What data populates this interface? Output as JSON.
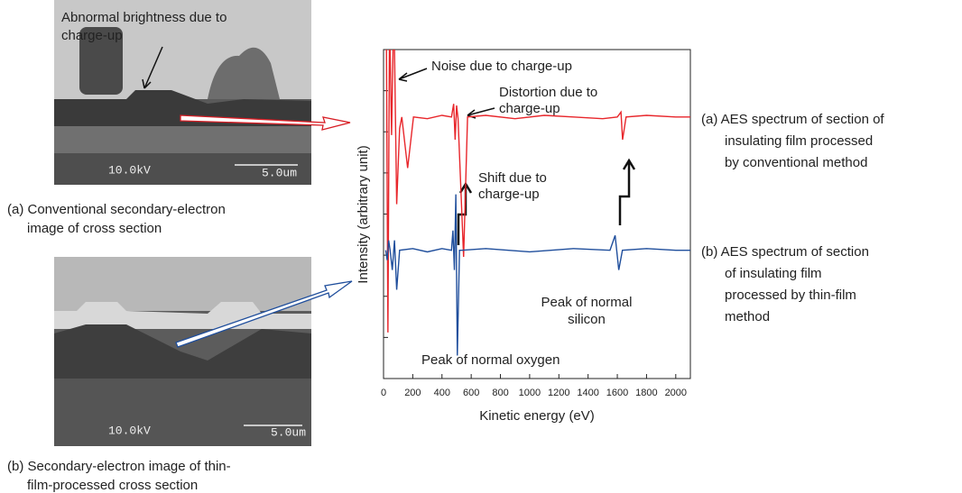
{
  "images": [
    {
      "caption": [
        "(a) Conventional secondary-electron",
        "image of cross section"
      ],
      "voltage": "10.0kV",
      "scale": "5.0um",
      "annotation": [
        "Abnormal brightness due to",
        "charge-up"
      ]
    },
    {
      "caption": [
        "(b) Secondary-electron image of thin-",
        "film-processed cross section"
      ],
      "voltage": "10.0kV",
      "scale": "5.0um"
    }
  ],
  "chart_data": {
    "type": "line",
    "xlabel": "Kinetic energy (eV)",
    "ylabel": "Intensity (arbitrary unit)",
    "xlim": [
      0,
      2100
    ],
    "xticks": [
      0,
      200,
      400,
      600,
      800,
      1000,
      1200,
      1400,
      1600,
      1800,
      2000
    ],
    "ylim": [
      0,
      10
    ],
    "series": [
      {
        "color": "#e8262b",
        "x": [
          20,
          30,
          40,
          45,
          55,
          65,
          75,
          90,
          110,
          125,
          165,
          205,
          300,
          400,
          465,
          480,
          490,
          500,
          510,
          548,
          575,
          700,
          900,
          1100,
          1300,
          1500,
          1600,
          1625,
          1636,
          1660,
          1800,
          2000,
          2100
        ],
        "values": [
          10,
          1.4,
          10,
          10,
          7.4,
          10,
          10,
          5.3,
          7.6,
          7.95,
          6.4,
          7.95,
          7.9,
          8.0,
          7.95,
          8.35,
          7.26,
          8.3,
          7.9,
          3.7,
          7.95,
          8.0,
          7.9,
          8.0,
          7.95,
          7.9,
          7.95,
          8.1,
          7.26,
          7.95,
          8.0,
          7.95,
          7.95
        ]
      },
      {
        "color": "#1f4e9c",
        "x": [
          15,
          25,
          35,
          45,
          60,
          75,
          90,
          110,
          200,
          300,
          400,
          465,
          475,
          485,
          495,
          505,
          520,
          535,
          700,
          1000,
          1300,
          1550,
          1585,
          1610,
          1635,
          1800,
          2000,
          2100
        ],
        "values": [
          3.9,
          3.6,
          4.2,
          3.9,
          3.3,
          4.2,
          2.7,
          3.9,
          3.95,
          3.85,
          3.95,
          3.9,
          4.5,
          3.3,
          5.6,
          0.7,
          3.9,
          3.9,
          3.95,
          3.85,
          3.95,
          3.9,
          4.35,
          3.3,
          3.9,
          3.95,
          3.9,
          3.9
        ]
      }
    ],
    "annotations": [
      {
        "lines": [
          "Noise due to charge-up"
        ]
      },
      {
        "lines": [
          "Distortion due to",
          "charge-up"
        ]
      },
      {
        "lines": [
          "Shift due to",
          "charge-up"
        ]
      },
      {
        "lines": [
          "Peak of normal oxygen"
        ]
      },
      {
        "lines": [
          "Peak of normal",
          "silicon"
        ]
      }
    ]
  },
  "descriptions": [
    {
      "lines": [
        "(a) AES spectrum of section of",
        "insulating film processed",
        "by conventional method"
      ]
    },
    {
      "lines": [
        "(b) AES spectrum of section",
        "of insulating film",
        "processed by thin-film",
        "method"
      ]
    }
  ]
}
